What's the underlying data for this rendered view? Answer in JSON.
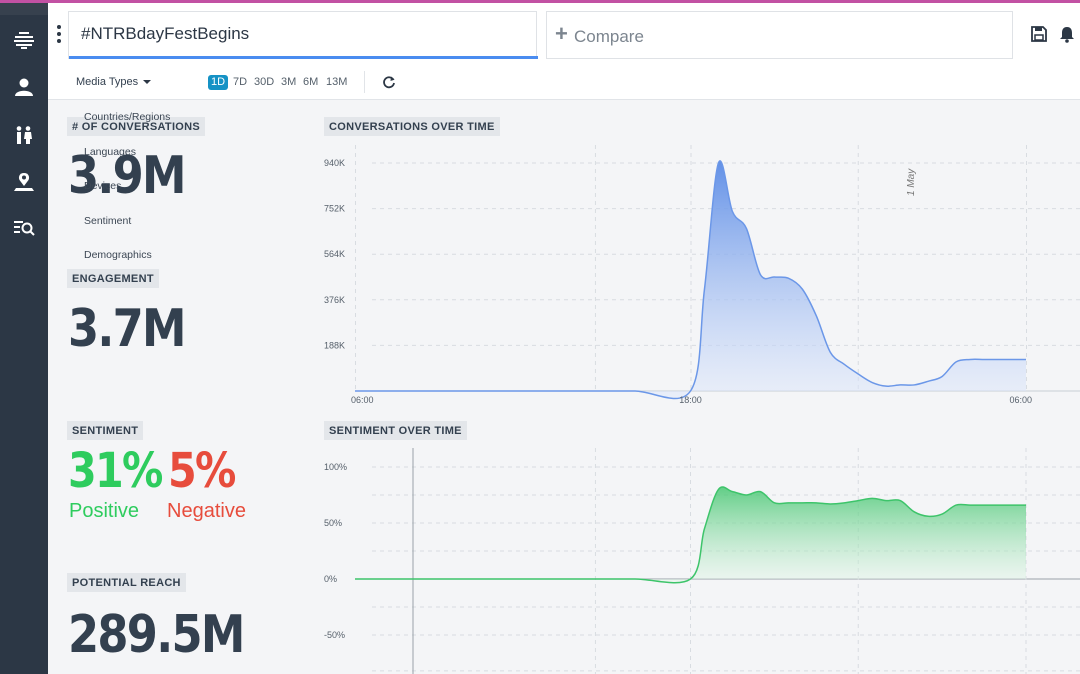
{
  "search": {
    "query": "#NTRBdayFestBegins"
  },
  "compare": {
    "label": "Compare"
  },
  "toolbar": {
    "media_types": "Media Types",
    "ranges": [
      "1D",
      "7D",
      "30D",
      "3M",
      "6M",
      "13M"
    ],
    "active_range": "1D"
  },
  "dropdown_items": [
    "Countries/Regions",
    "Languages",
    "Devices",
    "Sentiment",
    "Demographics"
  ],
  "cards": {
    "conversations": {
      "label": "# OF CONVERSATIONS",
      "value": "3.9M"
    },
    "engagement": {
      "label": "ENGAGEMENT",
      "value": "3.7M"
    },
    "sentiment": {
      "label": "SENTIMENT",
      "positive_value": "31%",
      "positive_label": "Positive",
      "negative_value": "5%",
      "negative_label": "Negative"
    },
    "reach": {
      "label": "POTENTIAL REACH",
      "value": "289.5M"
    }
  },
  "colors": {
    "positive": "#2ecc5e",
    "negative": "#e74c3c",
    "accent": "#1592c5",
    "conversations_line": "#6b97e8",
    "sentiment_line": "#3dc46a",
    "sidebar": "#2c3745"
  },
  "icons": {
    "sidebar": [
      "logo-icon",
      "user-icon",
      "people-icon",
      "location-icon",
      "list-search-icon"
    ],
    "header": [
      "save-icon",
      "bell-icon"
    ]
  },
  "chart_data": [
    {
      "type": "area",
      "title": "CONVERSATIONS OVER TIME",
      "x_ticks": [
        "06:00",
        "18:00",
        "06:00"
      ],
      "y_ticks": [
        "188K",
        "376K",
        "564K",
        "752K",
        "940K"
      ],
      "annotation": "1 May",
      "x": [
        0,
        2,
        4,
        6,
        8,
        10,
        12,
        12.5,
        13,
        13.5,
        14,
        14.5,
        15,
        15.5,
        16,
        16.5,
        17,
        17.5,
        18,
        18.5,
        19,
        19.5,
        20,
        20.5,
        21,
        21.5,
        22,
        22.5,
        23,
        23.5,
        24
      ],
      "series": [
        {
          "values": [
            0,
            0,
            0,
            0,
            0,
            0,
            0,
            420000,
            940000,
            740000,
            670000,
            480000,
            470000,
            465000,
            420000,
            310000,
            160000,
            110000,
            70000,
            35000,
            20000,
            25000,
            25000,
            40000,
            60000,
            120000,
            130000,
            130000,
            130000,
            130000,
            130000
          ]
        }
      ]
    },
    {
      "type": "area",
      "title": "SENTIMENT OVER TIME",
      "y_ticks": [
        "-50%",
        "0%",
        "50%",
        "100%"
      ],
      "x": [
        0,
        2,
        4,
        6,
        8,
        10,
        12,
        12.5,
        13,
        13.5,
        14,
        14.5,
        15,
        15.5,
        16,
        16.5,
        17,
        17.5,
        18,
        18.5,
        19,
        19.5,
        20,
        20.5,
        21,
        21.5,
        22,
        22.5,
        23,
        23.5,
        24
      ],
      "series": [
        {
          "values": [
            0,
            0,
            0,
            0,
            0,
            0,
            0,
            45,
            80,
            78,
            75,
            78,
            68,
            68,
            68,
            68,
            67,
            68,
            70,
            72,
            70,
            70,
            60,
            56,
            58,
            66,
            66,
            66,
            66,
            66,
            66
          ]
        }
      ]
    }
  ]
}
